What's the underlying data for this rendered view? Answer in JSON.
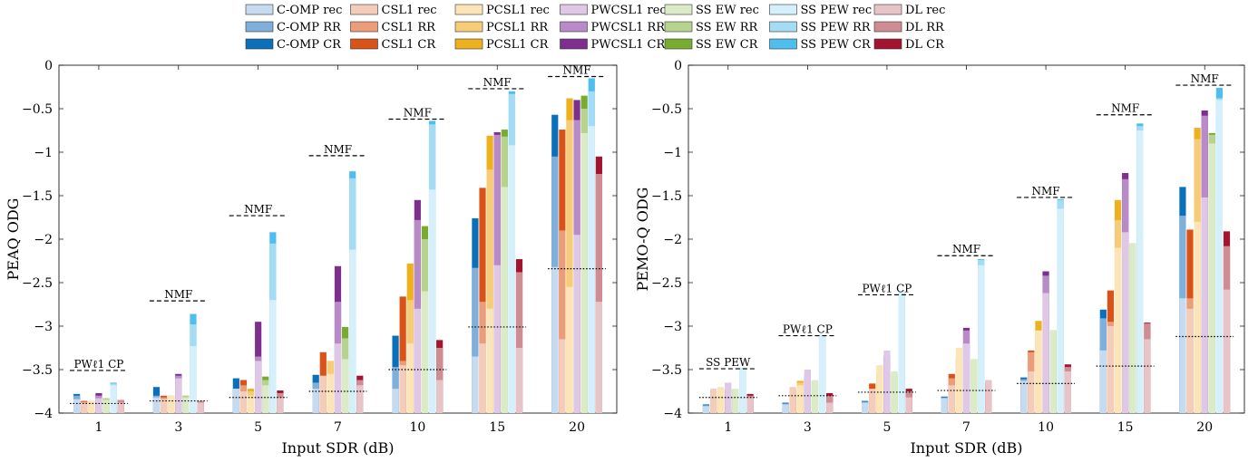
{
  "legend": {
    "placement": "top-center",
    "entries": [
      [
        "C-OMP rec",
        "CSL1 rec",
        "PCSL1 rec",
        "PWCSL1 rec",
        "SS EW rec",
        "SS PEW rec",
        "DL rec"
      ],
      [
        "C-OMP RR",
        "CSL1 RR",
        "PCSL1 RR",
        "PWCSL1 RR",
        "SS EW RR",
        "SS PEW RR",
        "DL RR"
      ],
      [
        "C-OMP CR",
        "CSL1 CR",
        "PCSL1 CR",
        "PWCSL1 CR",
        "SS EW CR",
        "SS PEW CR",
        "DL CR"
      ]
    ]
  },
  "colors": {
    "methods": [
      [
        "#c6dbef",
        "#7fb0dc",
        "#0b6fba"
      ],
      [
        "#f3cdb9",
        "#eb9d79",
        "#d95319"
      ],
      [
        "#fbe5b8",
        "#f7cc78",
        "#edb120"
      ],
      [
        "#dfc7e6",
        "#b88ac8",
        "#7e2f8e"
      ],
      [
        "#dcebc7",
        "#b6d48e",
        "#77ac30"
      ],
      [
        "#d6f0fb",
        "#a3dcf4",
        "#4dbeee"
      ],
      [
        "#e7c4c7",
        "#cf8c92",
        "#a2142f"
      ]
    ]
  },
  "chart_data": [
    {
      "type": "bar",
      "stacked": true,
      "xlabel": "Input SDR (dB)",
      "ylabel": "PEAQ ODG",
      "categories": [
        "1",
        "3",
        "5",
        "7",
        "10",
        "15",
        "20"
      ],
      "ylim": [
        -4,
        0
      ],
      "yticks": [
        -4,
        -3.5,
        -3,
        -2.5,
        -2,
        -1.5,
        -1,
        -0.5,
        0
      ],
      "ytick_labels": [
        "−4",
        "−3.5",
        "−3",
        "−2.5",
        "−2",
        "−1.5",
        "−1",
        "−0.5",
        "0"
      ],
      "series": [
        {
          "name": "C-OMP",
          "rec": [
            -3.84,
            -3.82,
            -3.72,
            -3.72,
            -3.72,
            -3.35,
            -2.32
          ],
          "rr": [
            -3.8,
            -3.8,
            -3.72,
            -3.65,
            -3.47,
            -2.33,
            -1.05
          ],
          "cr": [
            -3.78,
            -3.7,
            -3.6,
            -3.56,
            -3.11,
            -1.76,
            -0.57
          ]
        },
        {
          "name": "CSL1",
          "rec": [
            -3.88,
            -3.84,
            -3.75,
            -3.57,
            -3.45,
            -3.2,
            -3.15
          ],
          "rr": [
            -3.87,
            -3.82,
            -3.68,
            -3.6,
            -3.4,
            -2.72,
            -1.9
          ],
          "cr": [
            -3.86,
            -3.8,
            -3.62,
            -3.3,
            -2.66,
            -1.41,
            -0.74
          ]
        },
        {
          "name": "PCSL1",
          "rec": [
            -3.86,
            -3.8,
            -3.8,
            -3.55,
            -3.2,
            -2.8,
            -2.55
          ],
          "rr": [
            -3.86,
            -3.8,
            -3.75,
            -3.4,
            -2.7,
            -1.2,
            -0.63
          ],
          "cr": [
            -3.86,
            -3.8,
            -3.72,
            -3.4,
            -2.28,
            -0.81,
            -0.38
          ]
        },
        {
          "name": "PWCSL1",
          "rec": [
            -3.83,
            -3.6,
            -3.4,
            -3.2,
            -2.8,
            -2.3,
            -1.95
          ],
          "rr": [
            -3.8,
            -3.57,
            -3.35,
            -2.72,
            -1.78,
            -0.8,
            -0.63
          ],
          "cr": [
            -3.77,
            -3.55,
            -2.95,
            -2.31,
            -1.55,
            -0.77,
            -0.4
          ]
        },
        {
          "name": "SS EW",
          "rec": [
            -3.85,
            -3.82,
            -3.68,
            -3.38,
            -2.6,
            -1.4,
            -0.78
          ],
          "rr": [
            -3.83,
            -3.8,
            -3.62,
            -3.14,
            -2.0,
            -0.82,
            -0.5
          ],
          "cr": [
            -3.83,
            -3.8,
            -3.58,
            -3.01,
            -1.85,
            -0.74,
            -0.35
          ]
        },
        {
          "name": "SS PEW",
          "rec": [
            -3.68,
            -3.23,
            -2.7,
            -2.12,
            -1.43,
            -0.92,
            -0.7
          ],
          "rr": [
            -3.66,
            -2.98,
            -2.05,
            -1.3,
            -0.68,
            -0.33,
            -0.3
          ],
          "cr": [
            -3.65,
            -2.86,
            -1.92,
            -1.22,
            -0.64,
            -0.3,
            -0.15
          ]
        },
        {
          "name": "DL",
          "rec": [
            -3.88,
            -3.88,
            -3.82,
            -3.68,
            -3.62,
            -3.25,
            -2.72
          ],
          "rr": [
            -3.85,
            -3.86,
            -3.77,
            -3.62,
            -3.25,
            -2.38,
            -1.25
          ],
          "cr": [
            -3.85,
            -3.86,
            -3.74,
            -3.57,
            -3.16,
            -2.23,
            -1.05
          ]
        }
      ],
      "reference_lines": {
        "dashed": {
          "labels": [
            "PWℓ1 CP",
            "NMF",
            "NMF",
            "NMF",
            "NMF",
            "NMF",
            "NMF"
          ],
          "values": [
            -3.51,
            -2.71,
            -1.73,
            -1.04,
            -0.62,
            -0.27,
            -0.13
          ]
        },
        "dotted": {
          "values": [
            -3.89,
            -3.86,
            -3.82,
            -3.75,
            -3.5,
            -3.01,
            -2.34
          ]
        }
      }
    },
    {
      "type": "bar",
      "stacked": true,
      "xlabel": "Input SDR (dB)",
      "ylabel": "PEMO-Q ODG",
      "categories": [
        "1",
        "3",
        "5",
        "7",
        "10",
        "15",
        "20"
      ],
      "ylim": [
        -4,
        0
      ],
      "yticks": [
        -4,
        -3.5,
        -3,
        -2.5,
        -2,
        -1.5,
        -1,
        -0.5,
        0
      ],
      "ytick_labels": [
        "−4",
        "−3.5",
        "−3",
        "−2.5",
        "−2",
        "−1.5",
        "−1",
        "−0.5",
        "0"
      ],
      "series": [
        {
          "name": "C-OMP",
          "rec": [
            -3.92,
            -3.9,
            -3.88,
            -3.83,
            -3.63,
            -3.28,
            -2.68
          ],
          "rr": [
            -3.91,
            -3.89,
            -3.87,
            -3.82,
            -3.61,
            -2.91,
            -1.73
          ],
          "cr": [
            -3.9,
            -3.88,
            -3.86,
            -3.81,
            -3.59,
            -2.81,
            -1.4
          ]
        },
        {
          "name": "CSL1",
          "rec": [
            -3.72,
            -3.7,
            -3.72,
            -3.68,
            -3.52,
            -3.0,
            -2.8
          ],
          "rr": [
            -3.8,
            -3.75,
            -3.72,
            -3.6,
            -3.3,
            -2.95,
            -2.68
          ],
          "cr": [
            -3.8,
            -3.74,
            -3.66,
            -3.55,
            -3.28,
            -2.59,
            -1.89
          ]
        },
        {
          "name": "PCSL1",
          "rec": [
            -3.7,
            -3.68,
            -3.45,
            -3.25,
            -3.05,
            -2.1,
            -1.8
          ],
          "rr": [
            -3.72,
            -3.65,
            -3.58,
            -3.38,
            -3.05,
            -1.78,
            -0.85
          ],
          "cr": [
            -3.72,
            -3.63,
            -3.55,
            -3.36,
            -2.94,
            -1.55,
            -0.72
          ]
        },
        {
          "name": "PWCSL1",
          "rec": [
            -3.65,
            -3.5,
            -3.28,
            -3.2,
            -2.62,
            -1.92,
            -1.52
          ],
          "rr": [
            -3.72,
            -3.55,
            -3.33,
            -3.05,
            -2.42,
            -1.31,
            -0.58
          ],
          "cr": [
            -3.74,
            -3.59,
            -3.35,
            -3.02,
            -2.37,
            -1.24,
            -0.52
          ]
        },
        {
          "name": "SS EW",
          "rec": [
            -3.72,
            -3.62,
            -3.52,
            -3.38,
            -3.05,
            -2.05,
            -0.9
          ],
          "rr": [
            -3.73,
            -3.63,
            -3.55,
            -3.38,
            -3.05,
            -2.05,
            -0.8
          ],
          "cr": [
            -3.73,
            -3.64,
            -3.55,
            -3.38,
            -3.05,
            -2.05,
            -0.78
          ]
        },
        {
          "name": "SS PEW",
          "rec": [
            -3.48,
            -3.1,
            -2.6,
            -2.3,
            -1.65,
            -0.75,
            -0.4
          ],
          "rr": [
            -3.48,
            -3.1,
            -2.6,
            -2.24,
            -1.55,
            -0.7,
            -0.38
          ],
          "cr": [
            -3.48,
            -3.1,
            -2.6,
            -2.23,
            -1.54,
            -0.67,
            -0.26
          ]
        },
        {
          "name": "DL",
          "rec": [
            -3.82,
            -3.88,
            -3.82,
            -3.62,
            -3.52,
            -3.15,
            -2.58
          ],
          "rr": [
            -3.8,
            -3.8,
            -3.75,
            -3.65,
            -3.47,
            -2.97,
            -2.08
          ],
          "cr": [
            -3.78,
            -3.77,
            -3.72,
            -3.65,
            -3.44,
            -2.96,
            -1.91
          ]
        }
      ],
      "reference_lines": {
        "dashed": {
          "labels": [
            "SS PEW",
            "PWℓ1 CP",
            "PWℓ1 CP",
            "NMF",
            "NMF",
            "NMF",
            "NMF"
          ],
          "values": [
            -3.49,
            -3.11,
            -2.64,
            -2.19,
            -1.52,
            -0.57,
            -0.23
          ]
        },
        "dotted": {
          "values": [
            -3.82,
            -3.8,
            -3.76,
            -3.74,
            -3.66,
            -3.46,
            -3.12
          ]
        }
      }
    }
  ]
}
